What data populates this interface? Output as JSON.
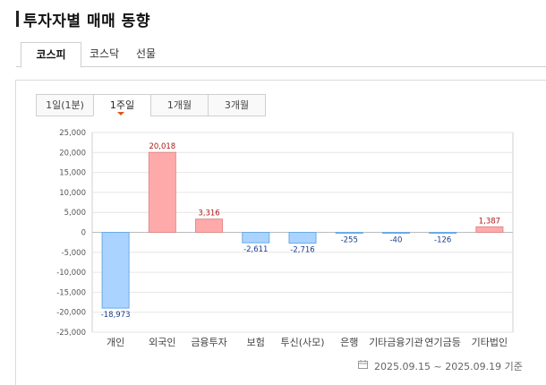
{
  "page": {
    "title": "투자자별 매매 동향"
  },
  "market_tabs": [
    "코스피",
    "코스닥",
    "선물"
  ],
  "active_market_tab": 0,
  "periods": [
    "1일(1분)",
    "1주일",
    "1개월",
    "3개월"
  ],
  "active_period": 1,
  "footer": {
    "date_range": "2025.09.15 ~ 2025.09.19 기준"
  },
  "colors": {
    "positive_fill": "#ffaaaa",
    "positive_stroke": "#e08a8a",
    "negative_fill": "#aad4ff",
    "negative_stroke": "#6aaae6",
    "positive_label": "#b01818",
    "negative_label": "#1a3c8c"
  },
  "icons": {
    "footer_icon": "calendar-icon",
    "period_marker": "triangle-down-icon"
  },
  "chart_data": {
    "type": "bar",
    "categories": [
      "개인",
      "외국인",
      "금융투자",
      "보험",
      "투신(사모)",
      "은행",
      "기타금융기관",
      "연기금등",
      "기타법인"
    ],
    "values": [
      -18973,
      20018,
      3316,
      -2611,
      -2716,
      -255,
      -40,
      -126,
      1387
    ],
    "value_labels": [
      "-18,973",
      "20,018",
      "3,316",
      "-2,611",
      "-2,716",
      "-255",
      "-40",
      "-126",
      "1,387"
    ],
    "ylim": [
      -25000,
      25000
    ],
    "yticks": [
      25000,
      20000,
      15000,
      10000,
      5000,
      0,
      -5000,
      -10000,
      -15000,
      -20000,
      -25000
    ],
    "ytick_labels": [
      "25,000",
      "20,000",
      "15,000",
      "10,000",
      "5,000",
      "0",
      "-5,000",
      "-10,000",
      "-15,000",
      "-20,000",
      "-25,000"
    ],
    "grid": true,
    "xlabel": "",
    "ylabel": ""
  }
}
